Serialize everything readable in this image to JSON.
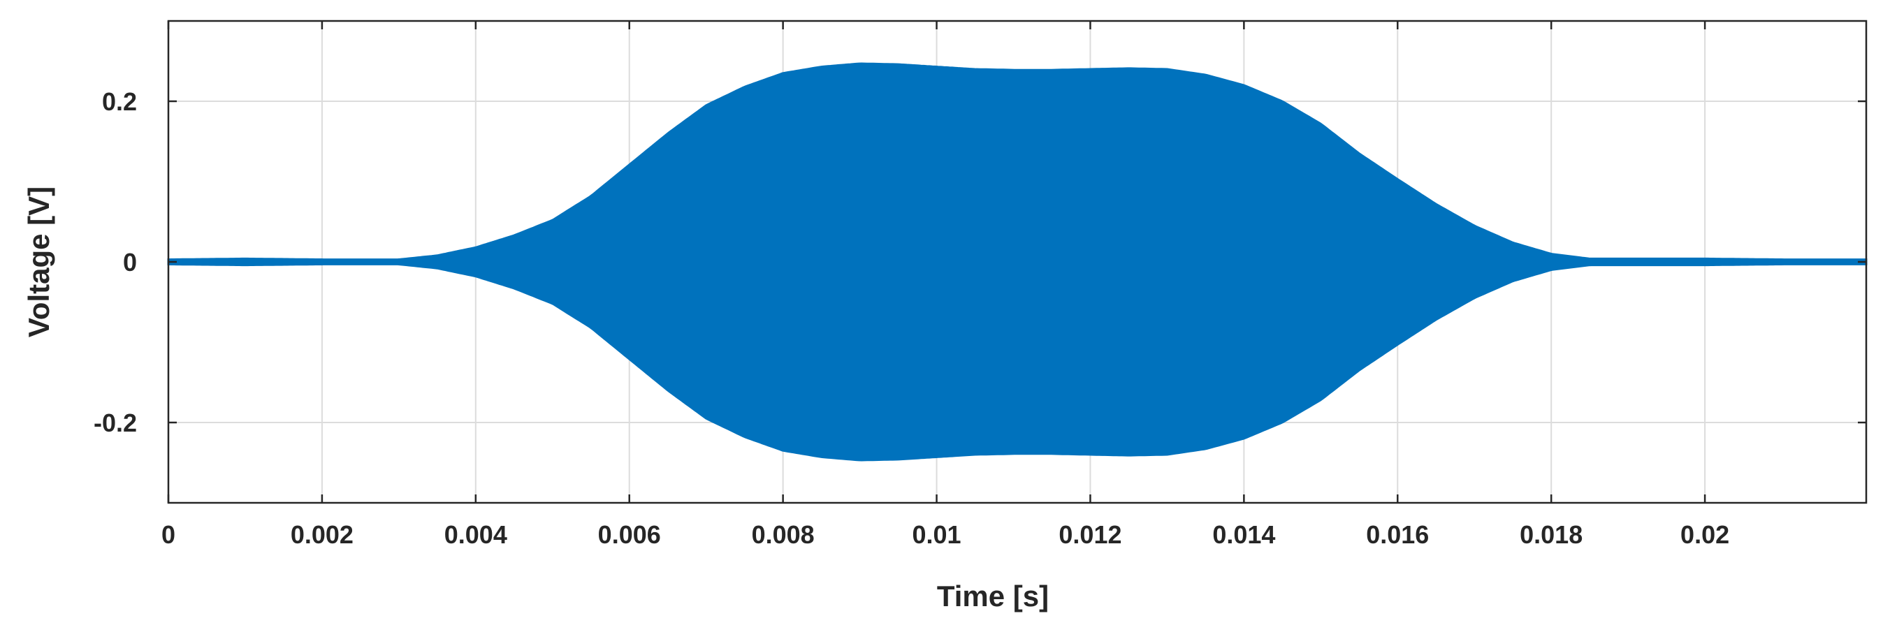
{
  "chart_data": {
    "type": "area",
    "title": "",
    "xlabel": "Time [s]",
    "ylabel": "Voltage [V]",
    "xlim": [
      0,
      0.0221
    ],
    "ylim": [
      -0.3,
      0.3
    ],
    "x_ticks": [
      0,
      0.002,
      0.004,
      0.006,
      0.008,
      0.01,
      0.012,
      0.014,
      0.016,
      0.018,
      0.02
    ],
    "x_tick_labels": [
      "0",
      "0.002",
      "0.004",
      "0.006",
      "0.008",
      "0.01",
      "0.012",
      "0.014",
      "0.016",
      "0.018",
      "0.02"
    ],
    "y_ticks": [
      0.2,
      0,
      -0.2
    ],
    "y_tick_labels": [
      "0.2",
      "0",
      "-0.2"
    ],
    "grid": true,
    "series": [
      {
        "color": "#0072bd",
        "envelope_time": [
          0,
          0.001,
          0.002,
          0.003,
          0.0035,
          0.004,
          0.0045,
          0.005,
          0.0055,
          0.006,
          0.0065,
          0.007,
          0.0075,
          0.008,
          0.0085,
          0.009,
          0.0095,
          0.01,
          0.0105,
          0.011,
          0.0115,
          0.012,
          0.0125,
          0.013,
          0.0135,
          0.014,
          0.0145,
          0.015,
          0.0155,
          0.016,
          0.0165,
          0.017,
          0.0175,
          0.018,
          0.0185,
          0.019,
          0.02,
          0.021,
          0.0221
        ],
        "envelope_amplitude": [
          0.003,
          0.004,
          0.003,
          0.003,
          0.008,
          0.018,
          0.033,
          0.052,
          0.082,
          0.121,
          0.16,
          0.195,
          0.218,
          0.235,
          0.243,
          0.247,
          0.246,
          0.243,
          0.24,
          0.239,
          0.239,
          0.24,
          0.241,
          0.24,
          0.233,
          0.22,
          0.2,
          0.172,
          0.135,
          0.103,
          0.072,
          0.045,
          0.024,
          0.01,
          0.004,
          0.004,
          0.004,
          0.003,
          0.003
        ]
      }
    ]
  }
}
